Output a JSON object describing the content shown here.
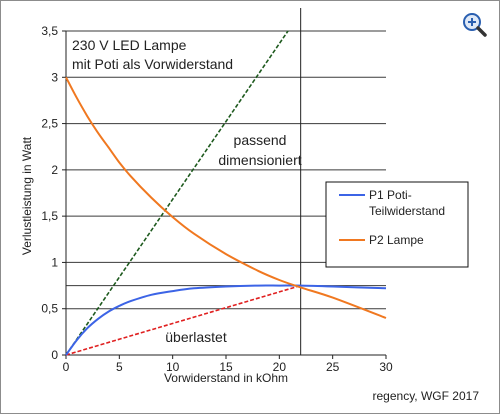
{
  "chart_data": {
    "type": "line",
    "title_lines": [
      "230 V LED Lampe",
      "mit Poti als Vorwiderstand"
    ],
    "xlabel": "Vorwiderstand in kOhm",
    "ylabel": "Verlustleistung in Watt",
    "xlim": [
      0,
      30
    ],
    "ylim": [
      0,
      3.5
    ],
    "xticks": [
      0,
      5,
      10,
      15,
      20,
      25,
      30
    ],
    "yticks": [
      0,
      0.5,
      1,
      1.5,
      2,
      2.5,
      3,
      3.5
    ],
    "xtick_labels": [
      "0",
      "5",
      "10",
      "15",
      "20",
      "25",
      "30"
    ],
    "ytick_labels": [
      "0",
      "0,5",
      "1",
      "1,5",
      "2",
      "2,5",
      "3",
      "3,5"
    ],
    "grid": "horizontal",
    "legend_position": "right",
    "series": [
      {
        "name": "P1 Poti-\nTeilwiderstand",
        "color": "#3c64e6",
        "x": [
          0,
          1,
          2,
          3,
          4,
          5,
          6,
          8,
          10,
          12,
          15,
          18,
          20,
          22,
          25,
          30
        ],
        "y": [
          0,
          0.16,
          0.29,
          0.39,
          0.47,
          0.53,
          0.58,
          0.65,
          0.69,
          0.72,
          0.74,
          0.75,
          0.75,
          0.75,
          0.74,
          0.72
        ]
      },
      {
        "name": "P2 Lampe",
        "color": "#f07820",
        "x": [
          0,
          1,
          2,
          3,
          4,
          5,
          6,
          8,
          10,
          12,
          15,
          18,
          20,
          22,
          25,
          30
        ],
        "y": [
          3.0,
          2.78,
          2.58,
          2.4,
          2.24,
          2.08,
          1.94,
          1.7,
          1.49,
          1.31,
          1.09,
          0.91,
          0.81,
          0.73,
          0.62,
          0.4
        ]
      }
    ],
    "reference_lines": [
      {
        "style": "dashed",
        "color": "#1e5a1e",
        "x": [
          0,
          22
        ],
        "y": [
          0,
          3.7
        ]
      },
      {
        "style": "dashed",
        "color": "#e02020",
        "x": [
          0,
          22
        ],
        "y": [
          0,
          0.75
        ]
      }
    ],
    "vertical_line_x": 22,
    "annotations": [
      {
        "text_lines": [
          "passend",
          "dimensioniert"
        ]
      },
      {
        "text_lines": [
          "überlastet"
        ]
      }
    ],
    "credit": "regency, WGF 2017"
  },
  "zoom_icon": "zoom-in-magnifier-icon"
}
